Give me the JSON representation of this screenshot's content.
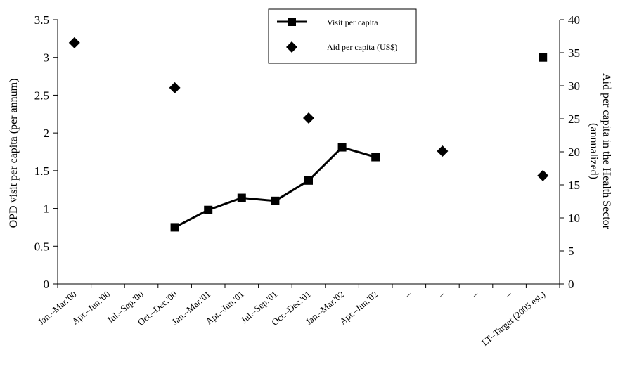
{
  "chart_data": {
    "type": "line",
    "categories": [
      "Jan.–Mar.'00",
      "Apr.–Jun.'00",
      "Jul.–Sep.'00",
      "Oct.–Dec.'00",
      "Jan.–Mar.'01",
      "Apr.–Jun.'01",
      "Jul.–Sep.'01",
      "Oct.–Dec.'01",
      "Jan.–Mar.'02",
      "Apr.–Jun.'02",
      "–",
      "–",
      "–",
      "–",
      "LT–Target (2005 est.)"
    ],
    "ylabel": "OPD visit per capita (per annum)",
    "y2label_line1": "Aid per capita in the Health Sector",
    "y2label_line2": "(annualized)",
    "ylim": [
      0,
      3.5
    ],
    "y2lim": [
      0,
      40
    ],
    "yticks": [
      "0",
      "0.5",
      "1",
      "1.5",
      "2",
      "2.5",
      "3",
      "3.5"
    ],
    "y2ticks": [
      "0",
      "5",
      "10",
      "15",
      "20",
      "25",
      "30",
      "35",
      "40"
    ],
    "legend_position": "top-center",
    "series": [
      {
        "name": "Visit per capita",
        "axis": "left",
        "marker": "square",
        "color": "#000000",
        "line_values": [
          null,
          null,
          null,
          0.75,
          0.98,
          1.14,
          1.1,
          1.37,
          1.81,
          1.68,
          null,
          null,
          null,
          null,
          null
        ],
        "extra_points": [
          {
            "category_index": 14,
            "value": 3.0
          }
        ]
      },
      {
        "name": "Aid per capita (US$)",
        "axis": "right",
        "marker": "diamond",
        "color": "#000000",
        "values": [
          36.5,
          null,
          null,
          29.7,
          null,
          null,
          null,
          25.1,
          null,
          null,
          null,
          20.1,
          null,
          null,
          16.4
        ]
      }
    ]
  }
}
